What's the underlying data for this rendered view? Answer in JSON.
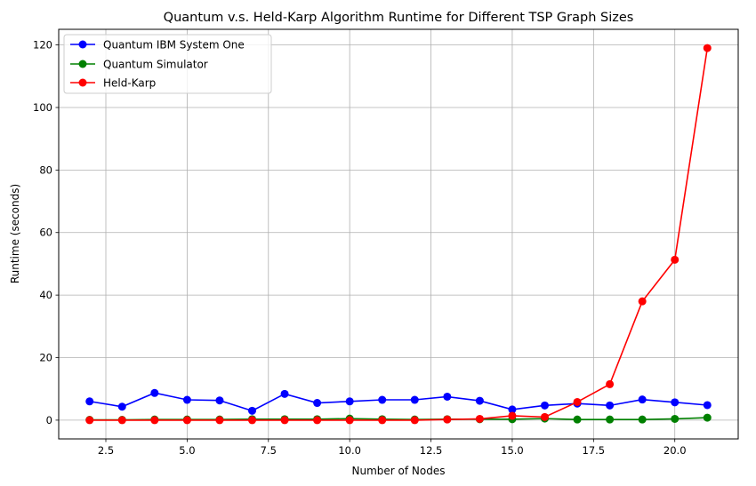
{
  "chart_data": {
    "type": "line",
    "title": "Quantum v.s. Held-Karp Algorithm Runtime for Different TSP Graph Sizes",
    "xlabel": "Number of Nodes",
    "ylabel": "Runtime (seconds)",
    "xlim": [
      1.05,
      21.95
    ],
    "ylim": [
      -6.0,
      125.0
    ],
    "xticks": [
      2.5,
      5.0,
      7.5,
      10.0,
      12.5,
      15.0,
      17.5,
      20.0
    ],
    "xtick_labels": [
      "2.5",
      "5.0",
      "7.5",
      "10.0",
      "12.5",
      "15.0",
      "17.5",
      "20.0"
    ],
    "yticks": [
      0,
      20,
      40,
      60,
      80,
      100,
      120
    ],
    "ytick_labels": [
      "0",
      "20",
      "40",
      "60",
      "80",
      "100",
      "120"
    ],
    "grid": true,
    "legend_position": "top-left",
    "x": [
      2,
      3,
      4,
      5,
      6,
      7,
      8,
      9,
      10,
      11,
      12,
      13,
      14,
      15,
      16,
      17,
      18,
      19,
      20,
      21
    ],
    "series": [
      {
        "name": "Quantum IBM System One",
        "color": "#0000ff",
        "values": [
          6.0,
          4.3,
          8.7,
          6.5,
          6.3,
          3.0,
          8.4,
          5.5,
          6.0,
          6.5,
          6.5,
          7.5,
          6.2,
          3.4,
          4.7,
          5.3,
          4.7,
          6.6,
          5.7,
          4.8
        ]
      },
      {
        "name": "Quantum Simulator",
        "color": "#008000",
        "values": [
          0.1,
          0.1,
          0.2,
          0.2,
          0.2,
          0.3,
          0.3,
          0.3,
          0.5,
          0.3,
          0.2,
          0.3,
          0.3,
          0.3,
          0.5,
          0.2,
          0.2,
          0.2,
          0.4,
          0.8
        ]
      },
      {
        "name": "Held-Karp",
        "color": "#ff0000",
        "values": [
          0.0,
          0.0,
          0.0,
          0.0,
          0.0,
          0.0,
          0.0,
          0.0,
          0.0,
          0.0,
          0.0,
          0.2,
          0.4,
          1.4,
          1.0,
          5.8,
          11.5,
          38.0,
          51.3,
          119.0
        ]
      }
    ]
  }
}
